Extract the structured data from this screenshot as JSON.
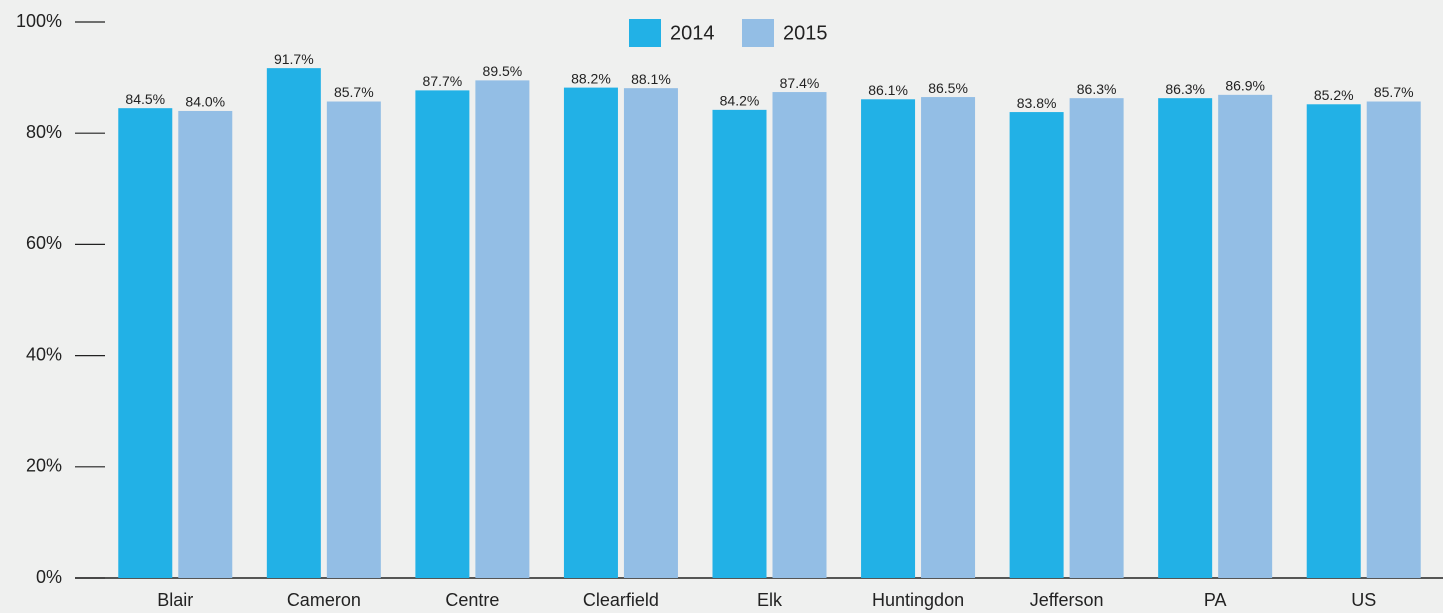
{
  "chart_data": {
    "type": "bar",
    "categories": [
      "Blair",
      "Cameron",
      "Centre",
      "Clearfield",
      "Elk",
      "Huntingdon",
      "Jefferson",
      "PA",
      "US"
    ],
    "series": [
      {
        "name": "2014",
        "color": "#22b1e6",
        "values": [
          84.5,
          91.7,
          87.7,
          88.2,
          84.2,
          86.1,
          83.8,
          86.3,
          85.2
        ],
        "value_labels": [
          "84.5%",
          "91.7%",
          "87.7%",
          "88.2%",
          "84.2%",
          "86.1%",
          "83.8%",
          "86.3%",
          "85.2%"
        ]
      },
      {
        "name": "2015",
        "color": "#93bee5",
        "values": [
          84.0,
          85.7,
          89.5,
          88.1,
          87.4,
          86.5,
          86.3,
          86.9,
          85.7
        ],
        "value_labels": [
          "84.0%",
          "85.7%",
          "89.5%",
          "88.1%",
          "87.4%",
          "86.5%",
          "86.3%",
          "86.9%",
          "85.7%"
        ]
      }
    ],
    "ylim": [
      0,
      100
    ],
    "yticks": [
      {
        "value": 0,
        "label": "0%"
      },
      {
        "value": 20,
        "label": "20%"
      },
      {
        "value": 40,
        "label": "40%"
      },
      {
        "value": 60,
        "label": "60%"
      },
      {
        "value": 80,
        "label": "80%"
      },
      {
        "value": 100,
        "label": "100%"
      }
    ],
    "legend": "top"
  }
}
